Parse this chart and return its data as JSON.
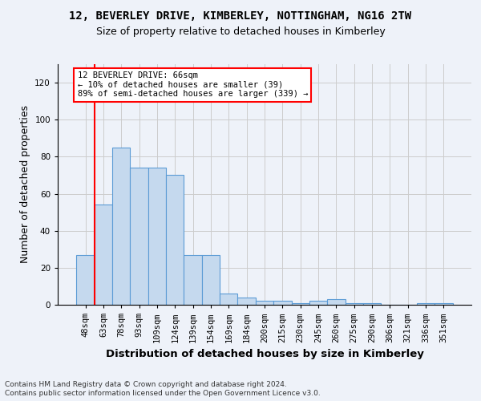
{
  "title": "12, BEVERLEY DRIVE, KIMBERLEY, NOTTINGHAM, NG16 2TW",
  "subtitle": "Size of property relative to detached houses in Kimberley",
  "xlabel": "Distribution of detached houses by size in Kimberley",
  "ylabel": "Number of detached properties",
  "categories": [
    "48sqm",
    "63sqm",
    "78sqm",
    "93sqm",
    "109sqm",
    "124sqm",
    "139sqm",
    "154sqm",
    "169sqm",
    "184sqm",
    "200sqm",
    "215sqm",
    "230sqm",
    "245sqm",
    "260sqm",
    "275sqm",
    "290sqm",
    "306sqm",
    "321sqm",
    "336sqm",
    "351sqm"
  ],
  "values": [
    27,
    54,
    85,
    74,
    74,
    70,
    27,
    27,
    6,
    4,
    2,
    2,
    1,
    2,
    3,
    1,
    1,
    0,
    0,
    1,
    1
  ],
  "bar_color": "#c5d9ee",
  "bar_edge_color": "#5b9bd5",
  "ylim": [
    0,
    130
  ],
  "yticks": [
    0,
    20,
    40,
    60,
    80,
    100,
    120
  ],
  "red_line_x": 0.5,
  "annotation_box_text": "12 BEVERLEY DRIVE: 66sqm\n← 10% of detached houses are smaller (39)\n89% of semi-detached houses are larger (339) →",
  "footer_line1": "Contains HM Land Registry data © Crown copyright and database right 2024.",
  "footer_line2": "Contains public sector information licensed under the Open Government Licence v3.0.",
  "background_color": "#eef2f9",
  "plot_bg_color": "#eef2f9",
  "title_fontsize": 10,
  "subtitle_fontsize": 9,
  "axis_label_fontsize": 9,
  "tick_fontsize": 7.5,
  "footer_fontsize": 6.5
}
